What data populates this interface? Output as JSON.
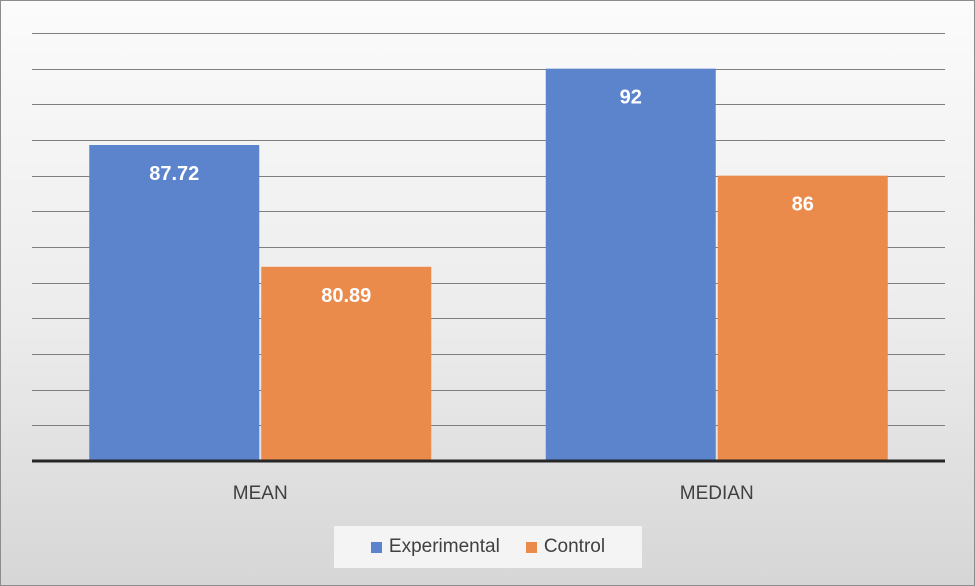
{
  "chart_data": {
    "type": "bar",
    "title": "",
    "xlabel": "",
    "ylabel": "",
    "categories": [
      "MEAN",
      "MEDIAN"
    ],
    "series": [
      {
        "name": "Experimental",
        "values": [
          87.72,
          92
        ],
        "labels": [
          "87.72",
          "92"
        ],
        "color": "#5b84cd"
      },
      {
        "name": "Control",
        "values": [
          80.89,
          86
        ],
        "labels": [
          "80.89",
          "86"
        ],
        "color": "#ea8a4b"
      }
    ],
    "ylim": [
      70,
      94
    ],
    "y_gridline_step": 2,
    "y_tick_labels_visible": false,
    "grid": true,
    "legend_position": "bottom"
  }
}
